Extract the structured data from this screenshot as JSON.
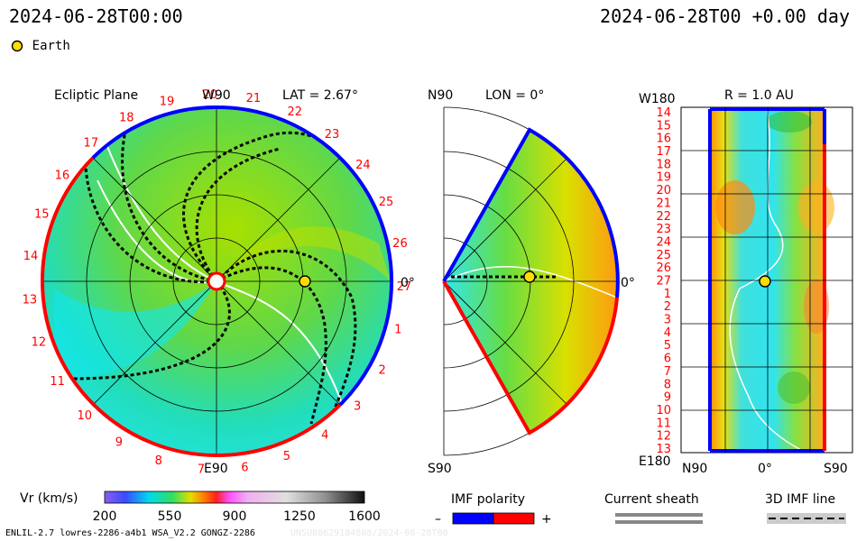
{
  "header": {
    "left_time": "2024-06-28T00:00",
    "right_time": "2024-06-28T00 +0.00 day"
  },
  "legend": {
    "earth_label": "Earth"
  },
  "panels": {
    "ecliptic": {
      "title": "Ecliptic Plane",
      "top_label": "W90",
      "lat_label": "LAT = 2.67°",
      "right_label": "0°",
      "bottom_label": "E90",
      "rotation_numbers": [
        "20",
        "21",
        "22",
        "23",
        "24",
        "25",
        "26",
        "27",
        "1",
        "2",
        "3",
        "4",
        "5",
        "6",
        "7",
        "8",
        "9",
        "10",
        "11",
        "12",
        "13",
        "14",
        "15",
        "16",
        "17",
        "18",
        "19"
      ]
    },
    "meridional": {
      "top_label": "N90",
      "lon_label": "LON = 0°",
      "right_label": "0°",
      "bottom_label": "S90"
    },
    "radial": {
      "r_label": "R = 1.0 AU",
      "top_left": "W180",
      "bottom_left": "E180",
      "bottom_labels": [
        "N90",
        "0°",
        "S90"
      ],
      "left_numbers": [
        "14",
        "15",
        "16",
        "17",
        "18",
        "19",
        "20",
        "21",
        "22",
        "23",
        "24",
        "25",
        "26",
        "27",
        "1",
        "2",
        "3",
        "4",
        "5",
        "6",
        "7",
        "8",
        "9",
        "10",
        "11",
        "12",
        "13"
      ]
    }
  },
  "colorbar": {
    "label": "Vr (km/s)",
    "ticks": [
      "200",
      "550",
      "900",
      "1250",
      "1600"
    ]
  },
  "imf_polarity": {
    "label": "IMF polarity",
    "minus": "–",
    "plus": "+"
  },
  "current_sheath": {
    "label": "Current sheath"
  },
  "imf_line": {
    "label": "3D IMF line"
  },
  "footer": {
    "left": "ENLIL-2.7 lowres-2286-a4b1 WSA_V2.2 GONGZ-2286",
    "right": "UNSUB0629184808/2024-06-28T00"
  },
  "colors": {
    "neg_polarity": "#0000ff",
    "pos_polarity": "#ff0000",
    "earth": "#ffdd00",
    "sheath": "#888888"
  },
  "chart_data": [
    {
      "type": "heatmap",
      "title": "Ecliptic Plane",
      "quantity": "Vr (km/s)",
      "labels": [
        "W90",
        "E90",
        "0°",
        "LAT = 2.67°"
      ],
      "markers": [
        {
          "name": "Earth",
          "r_au": 1.0,
          "lon_deg": 0
        }
      ]
    },
    {
      "type": "heatmap",
      "title": "LON = 0°",
      "quantity": "Vr (km/s)",
      "labels": [
        "N90",
        "S90",
        "0°"
      ],
      "markers": [
        {
          "name": "Earth",
          "r_au": 1.0,
          "lat_deg": 0
        }
      ]
    },
    {
      "type": "heatmap",
      "title": "R = 1.0 AU",
      "quantity": "Vr (km/s)",
      "labels": [
        "W180",
        "E180",
        "N90",
        "0°",
        "S90"
      ],
      "markers": [
        {
          "name": "Earth",
          "lat_deg": 0,
          "lon_deg": 0
        }
      ]
    }
  ],
  "colorbar_range": [
    200,
    1600
  ]
}
